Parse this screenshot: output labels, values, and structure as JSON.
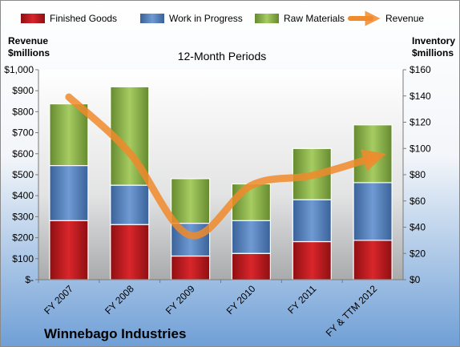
{
  "chart_data": {
    "type": "bar",
    "subtitle": "12-Month Periods",
    "footer_title": "Winnebago Industries",
    "y_left_title": [
      "Revenue",
      "$millions"
    ],
    "y_right_title": [
      "Inventory",
      "$millions"
    ],
    "categories": [
      "FY 2007",
      "FY 2008",
      "FY 2009",
      "FY 2010",
      "FY 2011",
      "FY & TTM 2012"
    ],
    "stacked": true,
    "series": [
      {
        "name": "Finished Goods",
        "type": "bar",
        "axis": "right",
        "color": "#c0161b",
        "values": [
          45,
          42,
          18,
          20,
          29,
          30
        ]
      },
      {
        "name": "Work in Progress",
        "type": "bar",
        "axis": "right",
        "color": "#4f7fc0",
        "values": [
          42,
          30,
          25,
          25,
          32,
          44
        ]
      },
      {
        "name": "Raw Materials",
        "type": "bar",
        "axis": "right",
        "color": "#8db64c",
        "values": [
          47,
          75,
          34,
          28,
          39,
          44
        ]
      },
      {
        "name": "Revenue",
        "type": "line",
        "axis": "left",
        "color": "#f08a2c",
        "values": [
          870,
          604,
          211,
          449,
          496,
          581
        ]
      }
    ],
    "y_left": {
      "min": 0,
      "max": 1000,
      "step": 100,
      "tick_labels": [
        "$-",
        "$100",
        "$200",
        "$300",
        "$400",
        "$500",
        "$600",
        "$700",
        "$800",
        "$900",
        "$1,000"
      ]
    },
    "y_right": {
      "min": 0,
      "max": 160,
      "step": 20,
      "tick_labels": [
        "$0",
        "$20",
        "$40",
        "$60",
        "$80",
        "$100",
        "$120",
        "$140",
        "$160"
      ]
    },
    "legend_position": "top",
    "grid": false
  }
}
